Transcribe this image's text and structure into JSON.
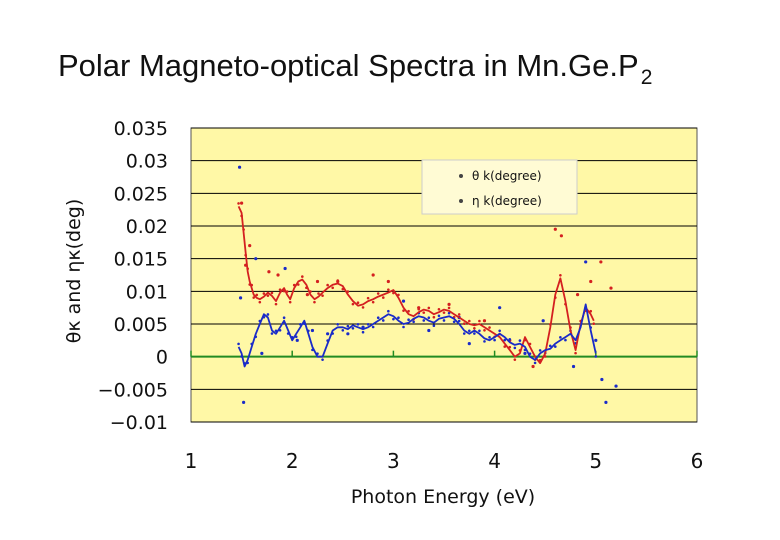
{
  "chart_data": {
    "type": "line",
    "title": "Polar Magneto-optical Spectra in Mn.Ge.P",
    "title_subscript": "2",
    "xlabel": "Photon Energy (eV)",
    "ylabel": "θκ and ηκ(deg)",
    "xlim": [
      1,
      6
    ],
    "ylim": [
      -0.01,
      0.035
    ],
    "x_ticks": [
      1,
      2,
      3,
      4,
      5,
      6
    ],
    "x_tick_labels": [
      "1",
      "2",
      "3",
      "4",
      "5",
      "6"
    ],
    "y_ticks": [
      0.035,
      0.03,
      0.025,
      0.02,
      0.015,
      0.01,
      0.005,
      0,
      -0.005,
      -0.01
    ],
    "y_tick_labels": [
      "0.035",
      "0.03",
      "0.025",
      "0.02",
      "0.015",
      "0.01",
      "0.005",
      "0",
      "−0.005",
      "−0.01"
    ],
    "grid": "horizontal",
    "legend_position": "top-right",
    "colors": {
      "background": "#fff8a6",
      "grid": "#000000",
      "zero_line": "#228b22",
      "theta": "#d42020",
      "eta": "#1a2bc8",
      "legend_bg": "#fffbd4"
    },
    "series": [
      {
        "name": "θ k(degree)",
        "color": "#d42020",
        "x": [
          1.47,
          1.5,
          1.52,
          1.54,
          1.56,
          1.58,
          1.6,
          1.62,
          1.65,
          1.68,
          1.72,
          1.76,
          1.8,
          1.84,
          1.88,
          1.92,
          1.95,
          1.98,
          2.02,
          2.06,
          2.1,
          2.14,
          2.18,
          2.22,
          2.26,
          2.3,
          2.35,
          2.4,
          2.45,
          2.5,
          2.55,
          2.6,
          2.65,
          2.7,
          2.75,
          2.8,
          2.85,
          2.9,
          2.95,
          3.0,
          3.05,
          3.1,
          3.15,
          3.2,
          3.25,
          3.3,
          3.35,
          3.4,
          3.45,
          3.5,
          3.55,
          3.6,
          3.65,
          3.7,
          3.75,
          3.8,
          3.85,
          3.9,
          3.95,
          4.0,
          4.05,
          4.1,
          4.15,
          4.2,
          4.25,
          4.3,
          4.35,
          4.4,
          4.45,
          4.5,
          4.55,
          4.6,
          4.65,
          4.7,
          4.75,
          4.8,
          4.85,
          4.9,
          4.95,
          4.98
        ],
        "values": [
          0.023,
          0.022,
          0.019,
          0.016,
          0.013,
          0.0115,
          0.0105,
          0.0095,
          0.009,
          0.0088,
          0.0092,
          0.0098,
          0.0093,
          0.0085,
          0.0098,
          0.0105,
          0.0095,
          0.0088,
          0.0105,
          0.0115,
          0.0118,
          0.011,
          0.0095,
          0.0088,
          0.0092,
          0.0098,
          0.0105,
          0.011,
          0.0112,
          0.0108,
          0.0095,
          0.0085,
          0.0078,
          0.008,
          0.0085,
          0.0088,
          0.0092,
          0.0095,
          0.0098,
          0.0102,
          0.009,
          0.0075,
          0.0065,
          0.0062,
          0.0068,
          0.0072,
          0.007,
          0.0065,
          0.0068,
          0.0072,
          0.007,
          0.0065,
          0.006,
          0.0055,
          0.005,
          0.0048,
          0.005,
          0.0045,
          0.004,
          0.0035,
          0.003,
          0.002,
          0.001,
          0.0,
          0.0005,
          0.003,
          0.0015,
          0.0,
          -0.001,
          0.0005,
          0.0045,
          0.0095,
          0.012,
          0.0085,
          0.004,
          0.001,
          0.005,
          0.0075,
          0.0065,
          0.0055
        ]
      },
      {
        "name": "η k(degree)",
        "color": "#1a2bc8",
        "x": [
          1.47,
          1.5,
          1.53,
          1.56,
          1.6,
          1.64,
          1.68,
          1.72,
          1.76,
          1.8,
          1.84,
          1.88,
          1.92,
          1.96,
          2.0,
          2.04,
          2.08,
          2.12,
          2.16,
          2.2,
          2.25,
          2.3,
          2.35,
          2.4,
          2.45,
          2.5,
          2.55,
          2.6,
          2.65,
          2.7,
          2.75,
          2.8,
          2.85,
          2.9,
          2.95,
          3.0,
          3.05,
          3.1,
          3.15,
          3.2,
          3.25,
          3.3,
          3.35,
          3.4,
          3.45,
          3.5,
          3.55,
          3.6,
          3.65,
          3.7,
          3.75,
          3.8,
          3.85,
          3.9,
          3.95,
          4.0,
          4.05,
          4.1,
          4.15,
          4.2,
          4.25,
          4.3,
          4.35,
          4.4,
          4.45,
          4.5,
          4.55,
          4.6,
          4.65,
          4.7,
          4.75,
          4.8,
          4.85,
          4.9,
          4.95,
          5.0
        ],
        "values": [
          0.0015,
          0.0005,
          -0.0015,
          -0.0005,
          0.0015,
          0.0035,
          0.005,
          0.0065,
          0.006,
          0.004,
          0.0035,
          0.0045,
          0.0055,
          0.004,
          0.0025,
          0.0035,
          0.0045,
          0.0055,
          0.0035,
          0.0015,
          0.0,
          0.0,
          0.002,
          0.004,
          0.0045,
          0.0045,
          0.0042,
          0.0048,
          0.0045,
          0.0042,
          0.0045,
          0.005,
          0.0055,
          0.006,
          0.0065,
          0.0062,
          0.0055,
          0.005,
          0.0052,
          0.0058,
          0.0062,
          0.006,
          0.0055,
          0.0052,
          0.0058,
          0.006,
          0.0062,
          0.0058,
          0.005,
          0.004,
          0.0035,
          0.004,
          0.0035,
          0.0028,
          0.0025,
          0.003,
          0.0035,
          0.003,
          0.0022,
          0.0018,
          0.002,
          0.0015,
          0.0,
          -0.0005,
          0.0005,
          0.001,
          0.0012,
          0.002,
          0.0025,
          0.003,
          0.0035,
          0.0025,
          0.0045,
          0.008,
          0.004,
          0.0005
        ]
      }
    ],
    "scatter_points": [
      [
        1.48,
        0.029,
        "#1a2bc8"
      ],
      [
        1.5,
        0.0235,
        "#d42020"
      ],
      [
        1.49,
        0.009,
        "#1a2bc8"
      ],
      [
        1.52,
        -0.007,
        "#1a2bc8"
      ],
      [
        1.54,
        0.014,
        "#d42020"
      ],
      [
        1.58,
        0.017,
        "#d42020"
      ],
      [
        1.64,
        0.015,
        "#1a2bc8"
      ],
      [
        1.7,
        0.0005,
        "#1a2bc8"
      ],
      [
        1.77,
        0.013,
        "#d42020"
      ],
      [
        1.86,
        0.0125,
        "#d42020"
      ],
      [
        1.93,
        0.0135,
        "#1a2bc8"
      ],
      [
        2.05,
        0.0025,
        "#1a2bc8"
      ],
      [
        2.15,
        0.0095,
        "#d42020"
      ],
      [
        2.2,
        0.004,
        "#1a2bc8"
      ],
      [
        2.25,
        0.0115,
        "#d42020"
      ],
      [
        2.35,
        0.0035,
        "#1a2bc8"
      ],
      [
        2.45,
        0.0115,
        "#d42020"
      ],
      [
        2.55,
        0.0035,
        "#1a2bc8"
      ],
      [
        2.7,
        0.0045,
        "#1a2bc8"
      ],
      [
        2.8,
        0.0125,
        "#d42020"
      ],
      [
        2.95,
        0.0115,
        "#d42020"
      ],
      [
        3.1,
        0.0085,
        "#1a2bc8"
      ],
      [
        3.25,
        0.0075,
        "#d42020"
      ],
      [
        3.35,
        0.004,
        "#1a2bc8"
      ],
      [
        3.55,
        0.008,
        "#d42020"
      ],
      [
        3.65,
        0.006,
        "#1a2bc8"
      ],
      [
        3.75,
        0.002,
        "#1a2bc8"
      ],
      [
        3.9,
        0.0055,
        "#d42020"
      ],
      [
        4.05,
        0.0075,
        "#1a2bc8"
      ],
      [
        4.15,
        0.0025,
        "#d42020"
      ],
      [
        4.3,
        0.0005,
        "#1a2bc8"
      ],
      [
        4.38,
        -0.0015,
        "#d42020"
      ],
      [
        4.48,
        0.0055,
        "#1a2bc8"
      ],
      [
        4.6,
        0.0195,
        "#d42020"
      ],
      [
        4.66,
        0.0185,
        "#d42020"
      ],
      [
        4.78,
        -0.0015,
        "#1a2bc8"
      ],
      [
        4.82,
        0.0095,
        "#d42020"
      ],
      [
        4.9,
        0.0145,
        "#1a2bc8"
      ],
      [
        4.95,
        0.0115,
        "#d42020"
      ],
      [
        5.0,
        0.0025,
        "#1a2bc8"
      ],
      [
        5.05,
        0.0145,
        "#d42020"
      ],
      [
        5.06,
        -0.0035,
        "#1a2bc8"
      ],
      [
        5.1,
        -0.007,
        "#1a2bc8"
      ],
      [
        5.15,
        0.0105,
        "#d42020"
      ],
      [
        5.2,
        -0.0045,
        "#1a2bc8"
      ]
    ]
  }
}
